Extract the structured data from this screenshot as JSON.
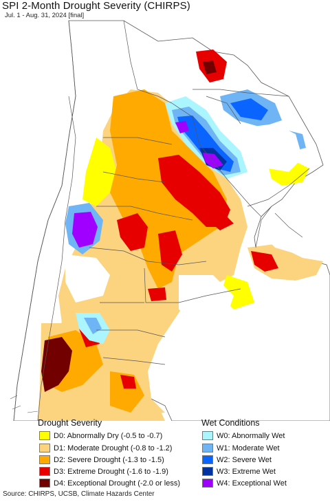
{
  "title": "SPI 2-Month Drought Severity (CHIRPS)",
  "subtitle": "Jul. 1 - Aug. 31, 2024 [final]",
  "legend": {
    "drought_heading": "Drought Severity",
    "wet_heading": "Wet Conditions",
    "drought": [
      {
        "label": "D0: Abnormally Dry (-0.5 to -0.7)",
        "color": "#ffff00"
      },
      {
        "label": "D1: Moderate Drought (-0.8 to -1.2)",
        "color": "#fcd37f"
      },
      {
        "label": "D2: Severe Drought (-1.3 to -1.5)",
        "color": "#ffaa00"
      },
      {
        "label": "D3: Extreme Drought (-1.6 to -1.9)",
        "color": "#e60000"
      },
      {
        "label": "D4: Exceptional Drought (-2.0 or less)",
        "color": "#730000"
      }
    ],
    "wet": [
      {
        "label": "W0: Abnormally Wet",
        "color": "#aaf5ff"
      },
      {
        "label": "W1: Moderate Wet",
        "color": "#6fb4f5"
      },
      {
        "label": "W2: Severe Wet",
        "color": "#0a64ff"
      },
      {
        "label": "W3: Extreme Wet",
        "color": "#0033a0"
      },
      {
        "label": "W4: Exceptional Wet",
        "color": "#a000ff"
      }
    ]
  },
  "source": "Source: CHIRPS, UCSB, Climate Hazards Center",
  "colors": {
    "ocean": "#ffffff",
    "land": "#ffffff",
    "border": "#555555"
  }
}
